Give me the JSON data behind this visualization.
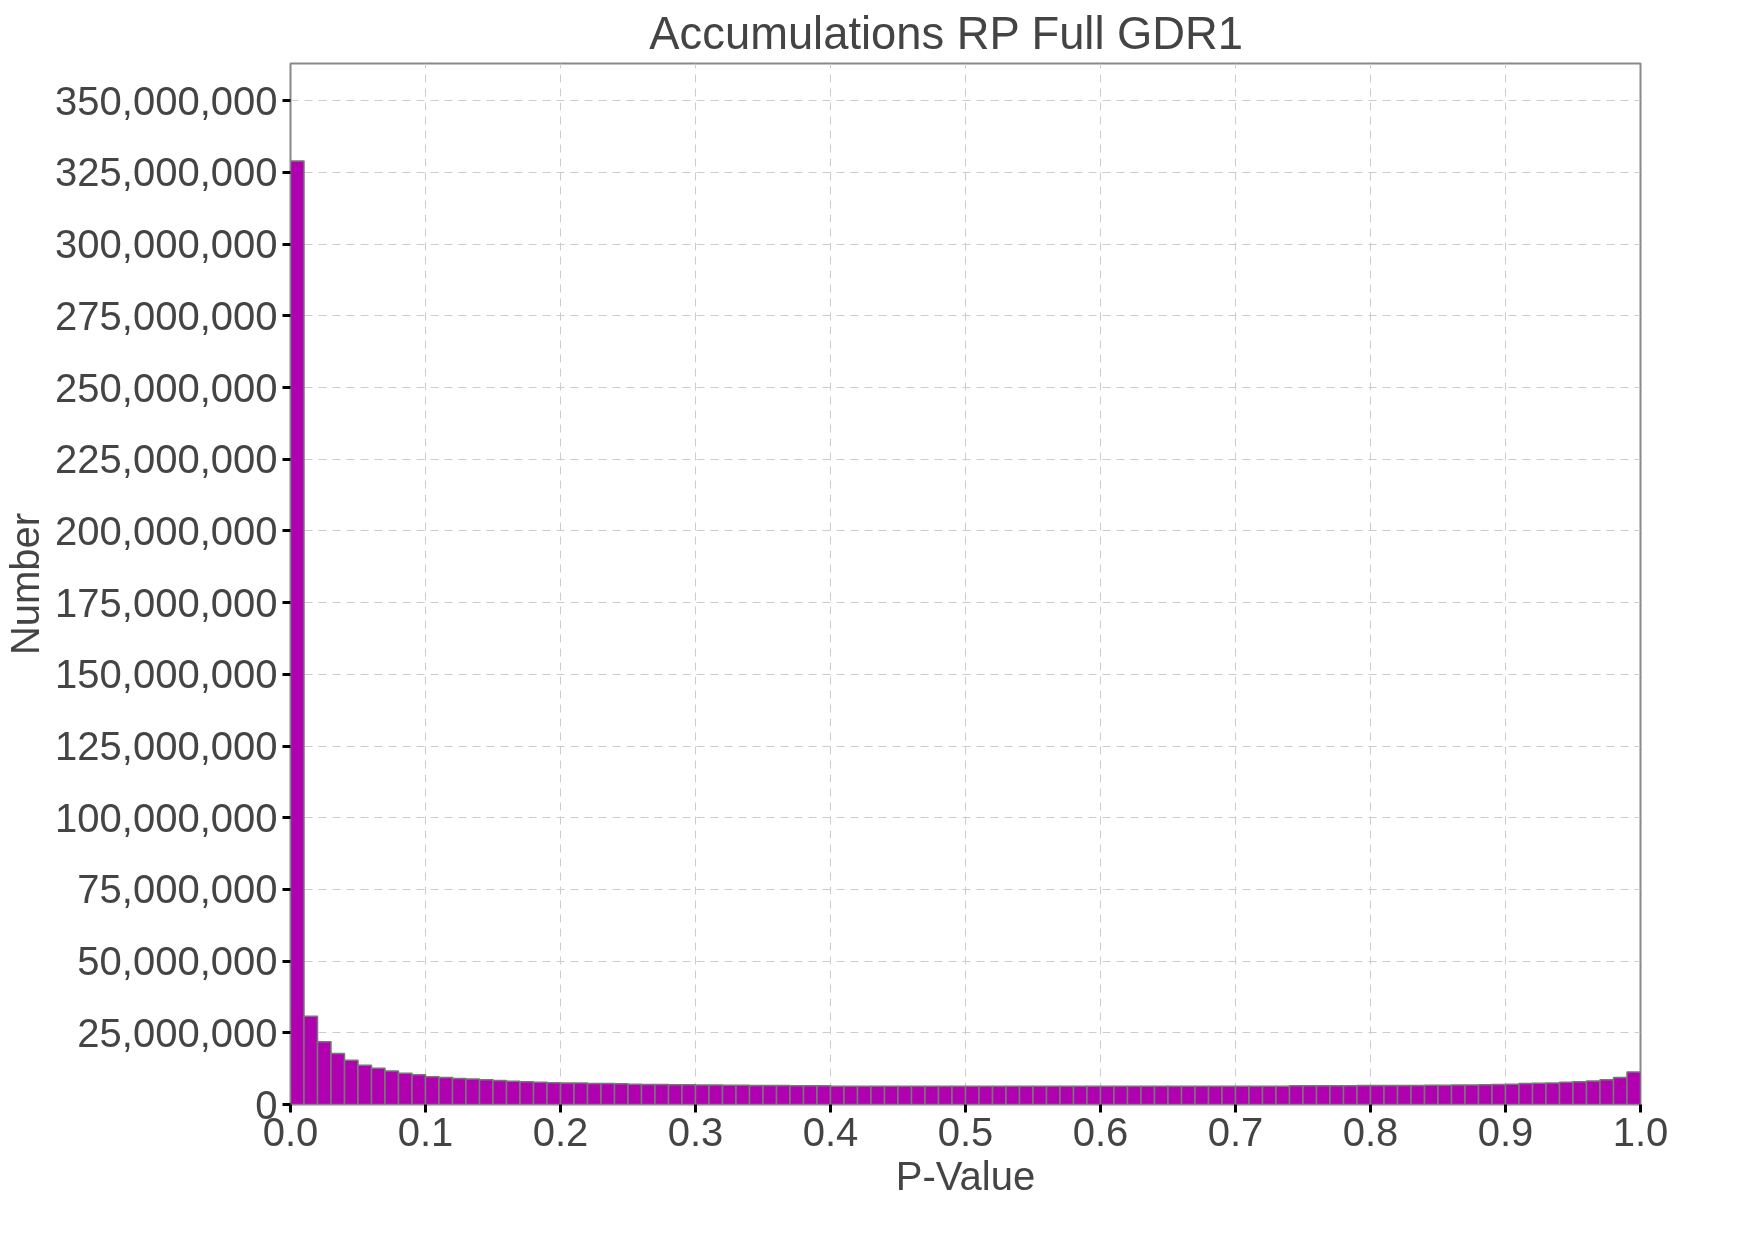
{
  "chart_data": {
    "type": "histogram",
    "title": "Accumulations RP    Full GDR1",
    "xlabel": "P-Value",
    "ylabel": "Number",
    "bins": [
      0,
      0.01,
      0.02,
      0.03,
      0.04,
      0.05,
      0.06,
      0.07,
      0.08,
      0.09,
      0.1,
      0.11,
      0.12,
      0.13,
      0.14,
      0.15,
      0.16,
      0.17,
      0.18,
      0.19,
      0.2,
      0.21,
      0.22,
      0.23,
      0.24,
      0.25,
      0.26,
      0.27,
      0.28,
      0.29,
      0.3,
      0.31,
      0.32,
      0.33,
      0.34,
      0.35,
      0.36,
      0.37,
      0.38,
      0.39,
      0.4,
      0.41,
      0.42,
      0.43,
      0.44,
      0.45,
      0.46,
      0.47,
      0.48,
      0.49,
      0.5,
      0.51,
      0.52,
      0.53,
      0.54,
      0.55,
      0.56,
      0.57,
      0.58,
      0.59,
      0.6,
      0.61,
      0.62,
      0.63,
      0.64,
      0.65,
      0.66,
      0.67,
      0.68,
      0.69,
      0.7,
      0.71,
      0.72,
      0.73,
      0.74,
      0.75,
      0.76,
      0.77,
      0.78,
      0.79,
      0.8,
      0.81,
      0.82,
      0.83,
      0.84,
      0.85,
      0.86,
      0.87,
      0.88,
      0.89,
      0.9,
      0.91,
      0.92,
      0.93,
      0.94,
      0.95,
      0.96,
      0.97,
      0.98,
      0.99,
      1
    ],
    "values": [
      329000000,
      30800000,
      21900000,
      17800000,
      15400000,
      13700000,
      12600000,
      11700000,
      10900000,
      10400000,
      9700000,
      9400000,
      9100000,
      8900000,
      8600000,
      8400000,
      8100000,
      7900000,
      7800000,
      7600000,
      7500000,
      7500000,
      7300000,
      7300000,
      7200000,
      7100000,
      7000000,
      7000000,
      6900000,
      6900000,
      6800000,
      6800000,
      6700000,
      6700000,
      6600000,
      6600000,
      6600000,
      6500000,
      6500000,
      6500000,
      6400000,
      6400000,
      6400000,
      6400000,
      6400000,
      6400000,
      6400000,
      6400000,
      6400000,
      6400000,
      6400000,
      6400000,
      6400000,
      6400000,
      6400000,
      6400000,
      6400000,
      6400000,
      6400000,
      6400000,
      6400000,
      6400000,
      6400000,
      6400000,
      6400000,
      6400000,
      6400000,
      6400000,
      6400000,
      6400000,
      6400000,
      6400000,
      6400000,
      6400000,
      6500000,
      6500000,
      6500000,
      6500000,
      6500000,
      6600000,
      6600000,
      6600000,
      6600000,
      6600000,
      6700000,
      6700000,
      6800000,
      6800000,
      6900000,
      7000000,
      7100000,
      7300000,
      7400000,
      7500000,
      7800000,
      7900000,
      8200000,
      8600000,
      9400000,
      11300000
    ],
    "color": "#b000b0",
    "xlim": [
      0,
      1
    ],
    "xticks": [
      {
        "value": 0,
        "label": "0.0"
      },
      {
        "value": 0.1,
        "label": "0.1"
      },
      {
        "value": 0.2,
        "label": "0.2"
      },
      {
        "value": 0.3,
        "label": "0.3"
      },
      {
        "value": 0.4,
        "label": "0.4"
      },
      {
        "value": 0.5,
        "label": "0.5"
      },
      {
        "value": 0.6,
        "label": "0.6"
      },
      {
        "value": 0.7,
        "label": "0.7"
      },
      {
        "value": 0.8,
        "label": "0.8"
      },
      {
        "value": 0.9,
        "label": "0.9"
      },
      {
        "value": 1,
        "label": "1.0"
      }
    ],
    "ylim": [
      0,
      363000000
    ],
    "yticks": [
      {
        "value": 0,
        "label": "0"
      },
      {
        "value": 25000000,
        "label": "25,000,000"
      },
      {
        "value": 50000000,
        "label": "50,000,000"
      },
      {
        "value": 75000000,
        "label": "75,000,000"
      },
      {
        "value": 100000000,
        "label": "100,000,000"
      },
      {
        "value": 125000000,
        "label": "125,000,000"
      },
      {
        "value": 150000000,
        "label": "150,000,000"
      },
      {
        "value": 175000000,
        "label": "175,000,000"
      },
      {
        "value": 200000000,
        "label": "200,000,000"
      },
      {
        "value": 225000000,
        "label": "225,000,000"
      },
      {
        "value": 250000000,
        "label": "250,000,000"
      },
      {
        "value": 275000000,
        "label": "275,000,000"
      },
      {
        "value": 300000000,
        "label": "300,000,000"
      },
      {
        "value": 325000000,
        "label": "325,000,000"
      },
      {
        "value": 350000000,
        "label": "350,000,000"
      }
    ],
    "grid": true
  }
}
